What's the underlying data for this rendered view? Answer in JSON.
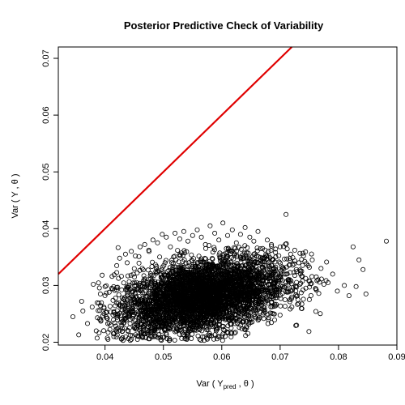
{
  "chart_data": {
    "type": "scatter",
    "title": "Posterior Predictive Check of Variability",
    "xlabel": {
      "prefix": "Var ( Y",
      "sub": "pred",
      "suffix": " , θ )"
    },
    "ylabel": "Var ( Y , θ )",
    "xlim": [
      0.032,
      0.09
    ],
    "ylim": [
      0.0195,
      0.072
    ],
    "x_ticks": [
      0.04,
      0.05,
      0.06,
      0.07,
      0.08,
      0.09
    ],
    "x_tick_labels": [
      "0.04",
      "0.05",
      "0.06",
      "0.07",
      "0.08",
      "0.09"
    ],
    "y_ticks": [
      0.02,
      0.03,
      0.04,
      0.05,
      0.06,
      0.07
    ],
    "y_tick_labels": [
      "0.02",
      "0.03",
      "0.04",
      "0.05",
      "0.06",
      "0.07"
    ],
    "grid": false,
    "reference_line": {
      "type": "identity",
      "color": "#e00000",
      "x": [
        0.032,
        0.072
      ],
      "y": [
        0.032,
        0.072
      ]
    },
    "cloud": {
      "description": "dense cloud of open circles",
      "x_center": 0.0565,
      "y_center": 0.028,
      "x_sd": 0.0072,
      "y_sd": 0.0035,
      "correlation": 0.4
    },
    "points": [
      [
        0.0345,
        0.0245
      ],
      [
        0.0355,
        0.0213
      ],
      [
        0.0362,
        0.0255
      ],
      [
        0.037,
        0.0233
      ],
      [
        0.0378,
        0.0262
      ],
      [
        0.0385,
        0.022
      ],
      [
        0.0392,
        0.0285
      ],
      [
        0.04,
        0.0298
      ],
      [
        0.0405,
        0.0205
      ],
      [
        0.0412,
        0.0316
      ],
      [
        0.042,
        0.0335
      ],
      [
        0.0425,
        0.0348
      ],
      [
        0.043,
        0.0208
      ],
      [
        0.0438,
        0.034
      ],
      [
        0.0445,
        0.036
      ],
      [
        0.0452,
        0.0352
      ],
      [
        0.046,
        0.0368
      ],
      [
        0.0468,
        0.0372
      ],
      [
        0.0475,
        0.0362
      ],
      [
        0.0482,
        0.038
      ],
      [
        0.049,
        0.0375
      ],
      [
        0.0498,
        0.039
      ],
      [
        0.0505,
        0.0385
      ],
      [
        0.0512,
        0.0368
      ],
      [
        0.052,
        0.0392
      ],
      [
        0.0528,
        0.0382
      ],
      [
        0.0535,
        0.0395
      ],
      [
        0.0542,
        0.0378
      ],
      [
        0.055,
        0.0388
      ],
      [
        0.0558,
        0.0398
      ],
      [
        0.0565,
        0.0385
      ],
      [
        0.0572,
        0.0372
      ],
      [
        0.058,
        0.0405
      ],
      [
        0.0588,
        0.0392
      ],
      [
        0.0595,
        0.038
      ],
      [
        0.0602,
        0.041
      ],
      [
        0.061,
        0.0388
      ],
      [
        0.0618,
        0.0398
      ],
      [
        0.0625,
        0.0375
      ],
      [
        0.0632,
        0.039
      ],
      [
        0.064,
        0.0402
      ],
      [
        0.0648,
        0.0385
      ],
      [
        0.0655,
        0.0378
      ],
      [
        0.0662,
        0.0395
      ],
      [
        0.067,
        0.0365
      ],
      [
        0.0678,
        0.038
      ],
      [
        0.0685,
        0.0372
      ],
      [
        0.0692,
        0.0358
      ],
      [
        0.07,
        0.0368
      ],
      [
        0.071,
        0.0425
      ],
      [
        0.0718,
        0.0355
      ],
      [
        0.0725,
        0.0362
      ],
      [
        0.0732,
        0.034
      ],
      [
        0.074,
        0.0352
      ],
      [
        0.0748,
        0.0335
      ],
      [
        0.0755,
        0.0345
      ],
      [
        0.0762,
        0.0315
      ],
      [
        0.077,
        0.033
      ],
      [
        0.0775,
        0.0302
      ],
      [
        0.0782,
        0.0305
      ],
      [
        0.079,
        0.032
      ],
      [
        0.0798,
        0.029
      ],
      [
        0.081,
        0.03
      ],
      [
        0.0818,
        0.0282
      ],
      [
        0.0825,
        0.0368
      ],
      [
        0.083,
        0.0298
      ],
      [
        0.0835,
        0.0345
      ],
      [
        0.0842,
        0.0328
      ],
      [
        0.0847,
        0.0285
      ],
      [
        0.0882,
        0.0378
      ],
      [
        0.0445,
        0.0205
      ],
      [
        0.047,
        0.0208
      ],
      [
        0.051,
        0.0203
      ],
      [
        0.054,
        0.021
      ],
      [
        0.058,
        0.0212
      ],
      [
        0.061,
        0.0218
      ],
      [
        0.064,
        0.0222
      ],
      [
        0.068,
        0.024
      ],
      [
        0.072,
        0.0262
      ],
      [
        0.075,
        0.0275
      ],
      [
        0.038,
        0.0302
      ],
      [
        0.036,
        0.0272
      ],
      [
        0.0395,
        0.0318
      ],
      [
        0.0415,
        0.021
      ],
      [
        0.0435,
        0.0355
      ]
    ]
  }
}
